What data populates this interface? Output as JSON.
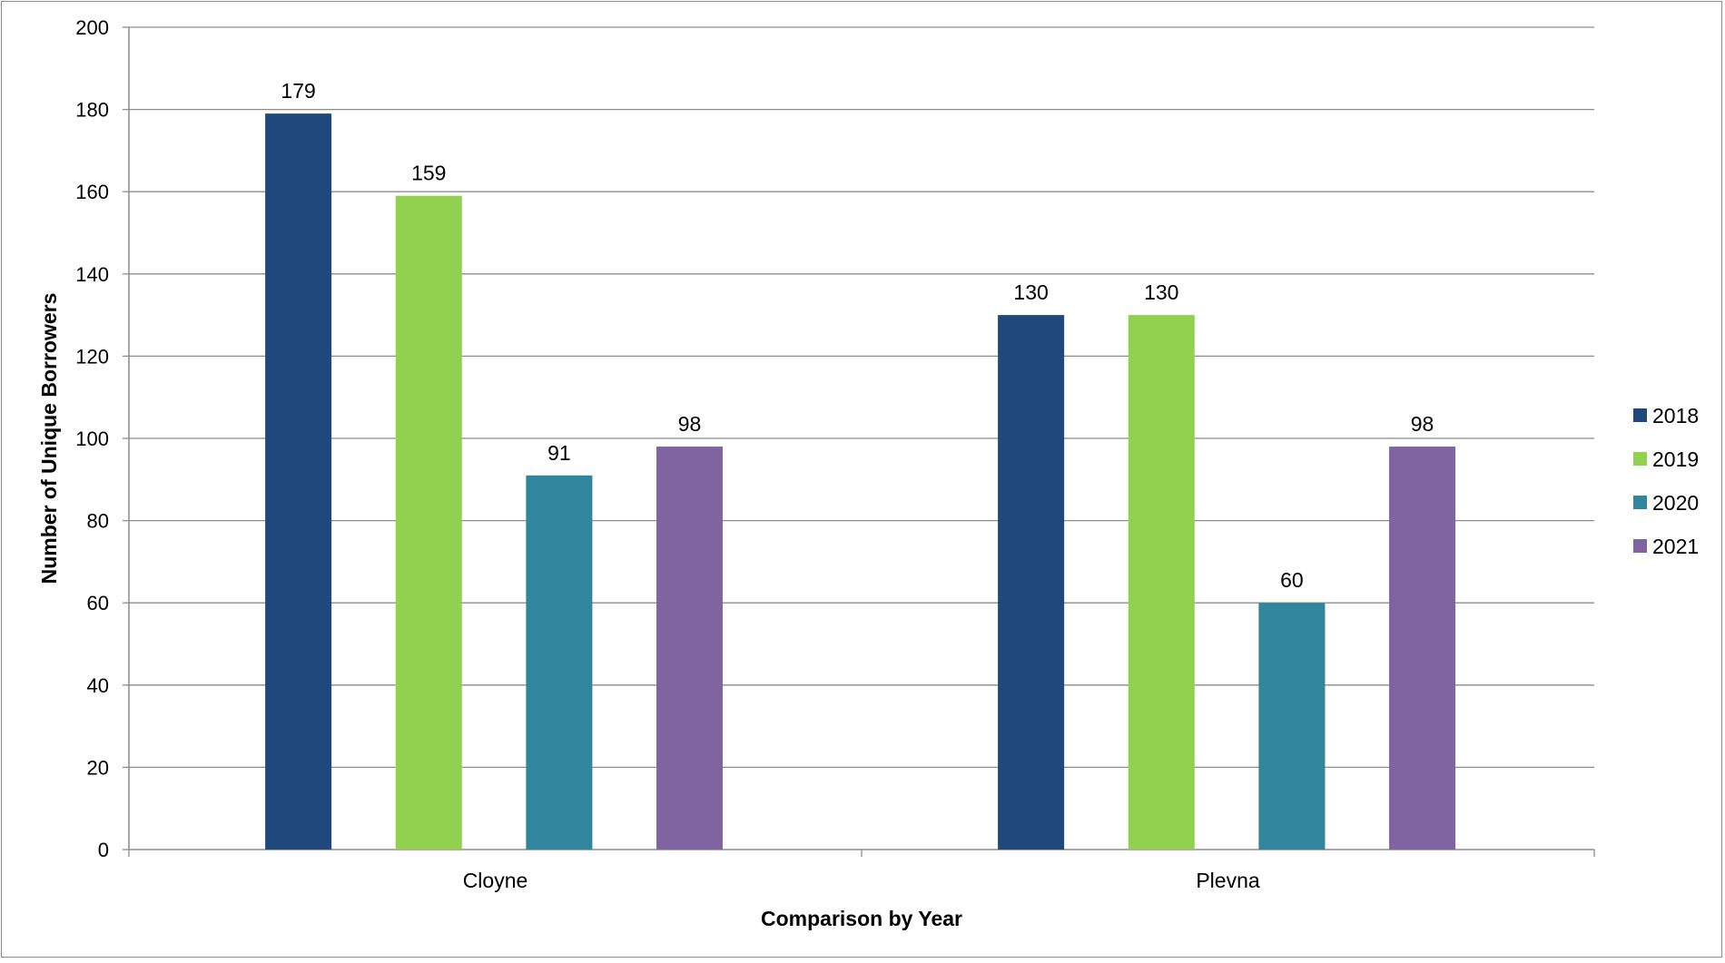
{
  "chart_data": {
    "type": "bar",
    "title": "",
    "xlabel": "Comparison by Year",
    "ylabel": "Number of Unique Borrowers",
    "ylim": [
      0,
      200
    ],
    "yticks": [
      0,
      20,
      40,
      60,
      80,
      100,
      120,
      140,
      160,
      180,
      200
    ],
    "grid": true,
    "legend_position": "right",
    "categories": [
      "Cloyne",
      "Plevna"
    ],
    "series": [
      {
        "name": "2018",
        "color": "#1f497d",
        "values": [
          179,
          130
        ]
      },
      {
        "name": "2019",
        "color": "#92d050",
        "values": [
          159,
          130
        ]
      },
      {
        "name": "2020",
        "color": "#31859c",
        "values": [
          91,
          60
        ]
      },
      {
        "name": "2021",
        "color": "#8064a2",
        "values": [
          98,
          98
        ]
      }
    ]
  }
}
